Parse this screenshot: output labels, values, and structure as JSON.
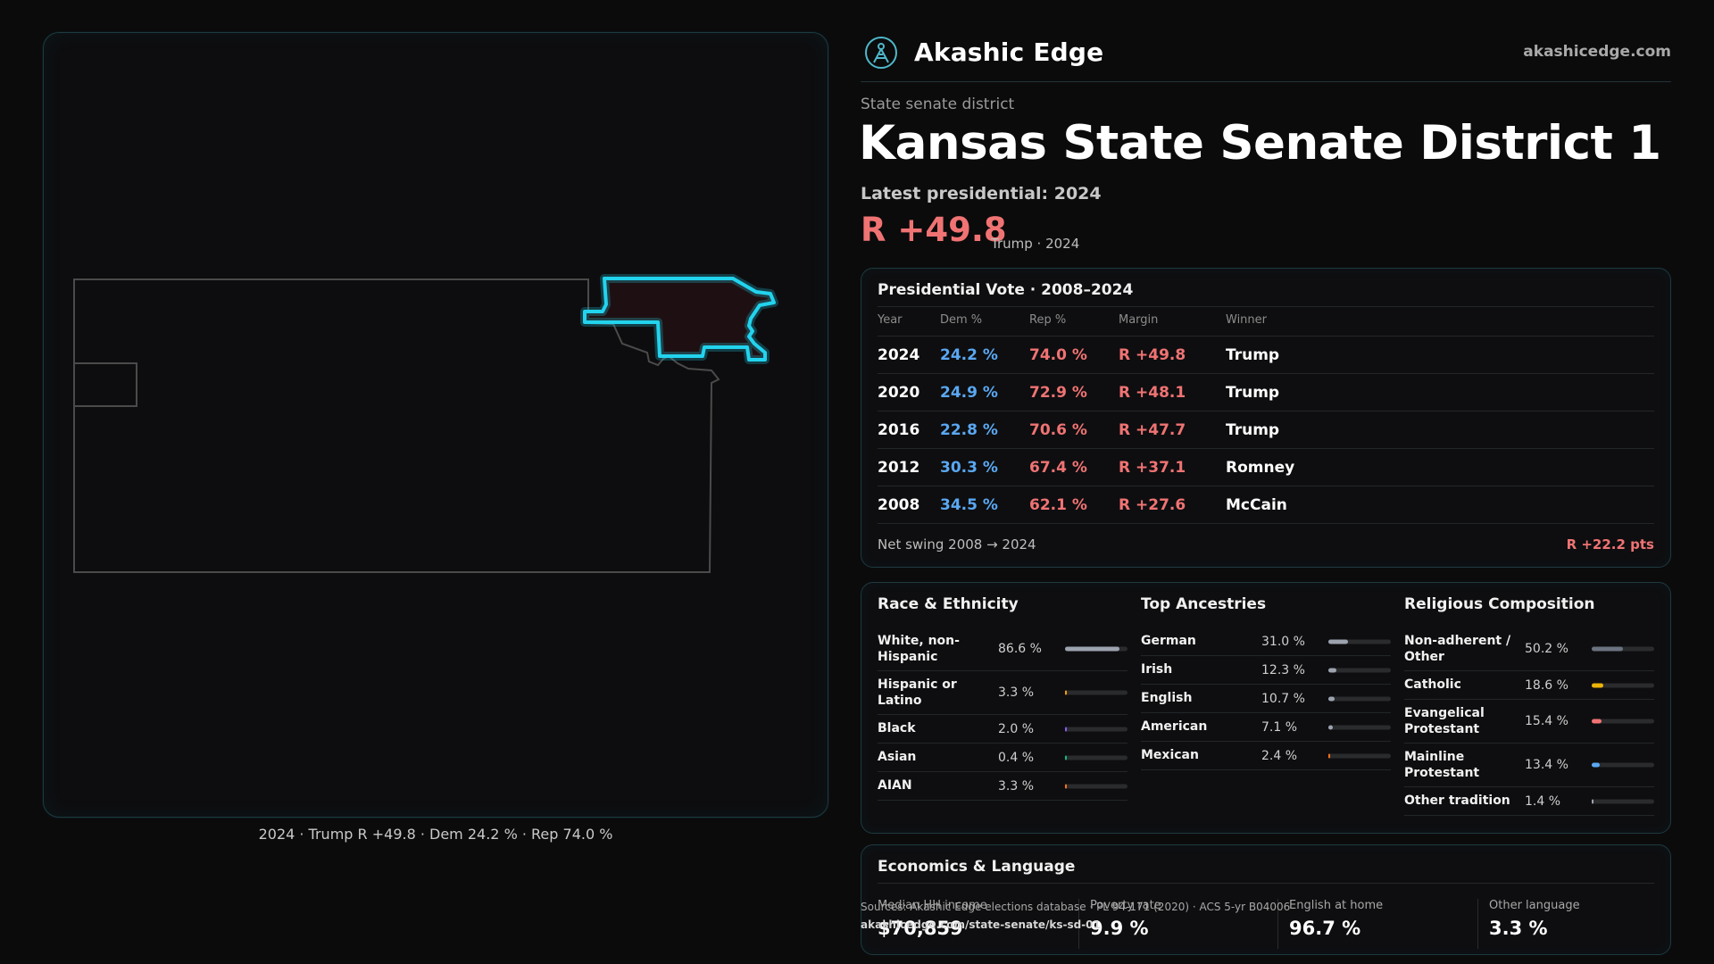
{
  "map": {
    "caption": "2024 · Trump R +49.8 · Dem 24.2 % · Rep 74.0 %",
    "colors": {
      "district_outline": "#22d3ee",
      "district_fill": "#1e1012",
      "state_outline": "#4a4a4a"
    }
  },
  "brand": {
    "name": "Akashic Edge",
    "url": "akashicedge.com",
    "logo_icon": "compass-icon"
  },
  "header": {
    "kicker": "State senate district",
    "title": "Kansas State Senate District 1",
    "latest_label": "Latest presidential: 2024",
    "margin": "R +49.8",
    "margin_note": "Trump · 2024"
  },
  "presidential": {
    "title": "Presidential Vote · 2008–2024",
    "columns": [
      "Year",
      "Dem %",
      "Rep %",
      "Margin",
      "Winner"
    ],
    "rows": [
      {
        "year": "2024",
        "dem": "24.2 %",
        "rep": "74.0 %",
        "margin": "R +49.8",
        "winner": "Trump"
      },
      {
        "year": "2020",
        "dem": "24.9 %",
        "rep": "72.9 %",
        "margin": "R +48.1",
        "winner": "Trump"
      },
      {
        "year": "2016",
        "dem": "22.8 %",
        "rep": "70.6 %",
        "margin": "R +47.7",
        "winner": "Trump"
      },
      {
        "year": "2012",
        "dem": "30.3 %",
        "rep": "67.4 %",
        "margin": "R +37.1",
        "winner": "Romney"
      },
      {
        "year": "2008",
        "dem": "34.5 %",
        "rep": "62.1 %",
        "margin": "R +27.6",
        "winner": "McCain"
      }
    ],
    "swing_label": "Net swing 2008 → 2024",
    "swing_value": "R +22.2 pts",
    "colors": {
      "dem": "#5aa8f2",
      "rep": "#f07373"
    }
  },
  "demographics": {
    "race": {
      "title": "Race & Ethnicity",
      "items": [
        {
          "label": "White, non-Hispanic",
          "value": "86.6 %",
          "pct": 86.6,
          "color": "#9ca3af"
        },
        {
          "label": "Hispanic or Latino",
          "value": "3.3 %",
          "pct": 3.3,
          "color": "#f59e0b"
        },
        {
          "label": "Black",
          "value": "2.0 %",
          "pct": 2.0,
          "color": "#8b5cf6"
        },
        {
          "label": "Asian",
          "value": "0.4 %",
          "pct": 0.4,
          "color": "#10b981"
        },
        {
          "label": "AIAN",
          "value": "3.3 %",
          "pct": 3.3,
          "color": "#f97316"
        }
      ]
    },
    "ancestry": {
      "title": "Top Ancestries",
      "items": [
        {
          "label": "German",
          "value": "31.0 %",
          "pct": 31.0,
          "color": "#9ca3af"
        },
        {
          "label": "Irish",
          "value": "12.3 %",
          "pct": 12.3,
          "color": "#9ca3af"
        },
        {
          "label": "English",
          "value": "10.7 %",
          "pct": 10.7,
          "color": "#9ca3af"
        },
        {
          "label": "American",
          "value": "7.1 %",
          "pct": 7.1,
          "color": "#9ca3af"
        },
        {
          "label": "Mexican",
          "value": "2.4 %",
          "pct": 2.4,
          "color": "#f97316"
        }
      ]
    },
    "religion": {
      "title": "Religious Composition",
      "items": [
        {
          "label": "Non-adherent / Other",
          "value": "50.2 %",
          "pct": 50.2,
          "color": "#6b7280"
        },
        {
          "label": "Catholic",
          "value": "18.6 %",
          "pct": 18.6,
          "color": "#eab308"
        },
        {
          "label": "Evangelical Protestant",
          "value": "15.4 %",
          "pct": 15.4,
          "color": "#f07373"
        },
        {
          "label": "Mainline Protestant",
          "value": "13.4 %",
          "pct": 13.4,
          "color": "#5aa8f2"
        },
        {
          "label": "Other tradition",
          "value": "1.4 %",
          "pct": 1.4,
          "color": "#9ca3af"
        }
      ]
    }
  },
  "economics": {
    "title": "Economics & Language",
    "metrics": [
      {
        "label": "Median HH income",
        "value": "$70,859"
      },
      {
        "label": "Poverty rate",
        "value": "9.9 %"
      },
      {
        "label": "English at home",
        "value": "96.7 %"
      },
      {
        "label": "Other language",
        "value": "3.3 %"
      }
    ]
  },
  "source": {
    "line": "Sources: Akashic Edge elections database · PL 94-171 (2020) · ACS 5-yr B04006",
    "url": "akashicedge.com/state-senate/ks-sd-01"
  }
}
